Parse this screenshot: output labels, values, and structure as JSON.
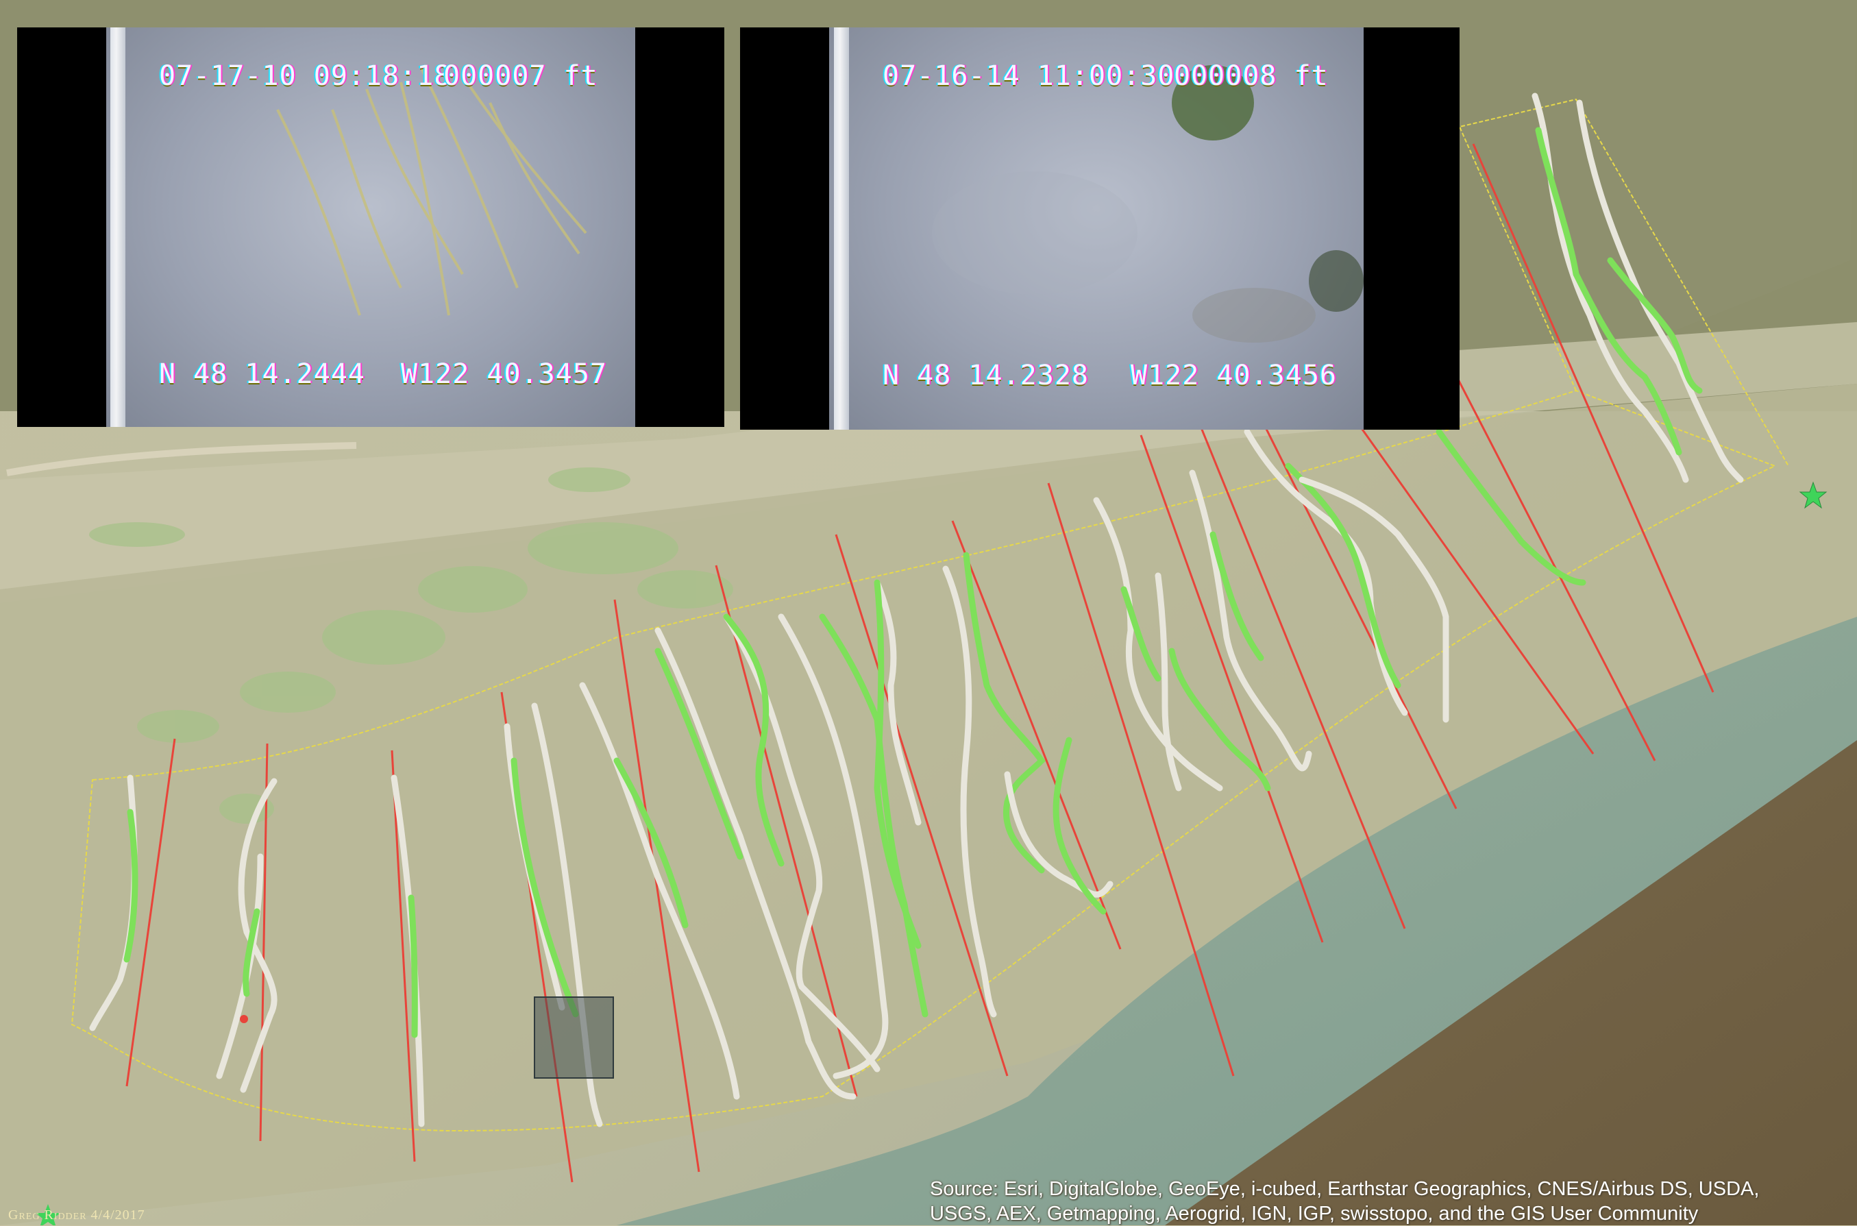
{
  "video_frames": [
    {
      "timestamp": "07-17-10 09:18:18",
      "depth": "000007 ft",
      "lat": "N 48 14.2444",
      "lon": "W122 40.3457"
    },
    {
      "timestamp": "07-16-14 11:00:30",
      "depth": "000008 ft",
      "lat": "N 48 14.2328",
      "lon": "W122 40.3456"
    }
  ],
  "attribution": {
    "line1": "Source: Esri, DigitalGlobe, GeoEye, i-cubed, Earthstar Geographics, CNES/Airbus DS, USDA,",
    "line2": "USGS, AEX, Getmapping, Aerogrid, IGN, IGP, swisstopo, and the GIS User Community"
  },
  "credit": "Greg Ridder 4/4/2017",
  "legend_colors": {
    "transect_line": "#e8443a",
    "eelgrass_present": "#7ee05a",
    "eelgrass_absent": "#e8e6dc",
    "survey_boundary": "#e6d84a",
    "marker": "#3fd45a"
  },
  "icons": [
    "station-star-icon",
    "corner-star-icon",
    "highlight-box"
  ]
}
